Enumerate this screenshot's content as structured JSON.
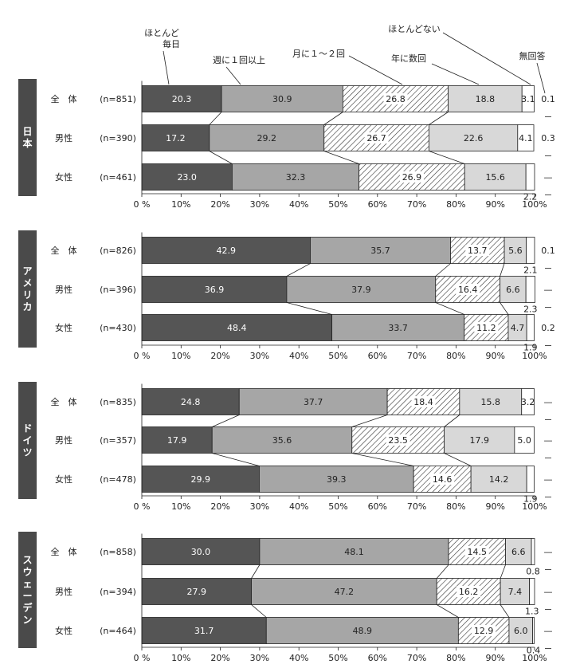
{
  "chart_data": {
    "type": "bar",
    "orientation": "horizontal",
    "stacked": true,
    "xlim": [
      0,
      100
    ],
    "xticks": [
      "0 %",
      "10%",
      "20%",
      "30%",
      "40%",
      "50%",
      "60%",
      "70%",
      "80%",
      "90%",
      "100%"
    ],
    "categories_legend": [
      "ほとんど\n毎日",
      "週に１回以上",
      "月に１～２回",
      "年に数回",
      "ほとんどない",
      "無回答"
    ],
    "colors": [
      "#555555",
      "#a6a6a6",
      "hatch",
      "#d8d8d8",
      "#ffffff",
      "#ffffff"
    ],
    "groups": [
      {
        "country": "日本",
        "rows": [
          {
            "label": "全　体",
            "n": "(n=851)",
            "values": [
              20.3,
              30.9,
              26.8,
              18.8,
              3.1,
              0.1
            ],
            "labels": [
              "20.3",
              "30.9",
              "26.8",
              "18.8",
              "3.1",
              "0.1"
            ]
          },
          {
            "label": "男性",
            "n": "(n=390)",
            "values": [
              17.2,
              29.2,
              26.7,
              22.6,
              4.1,
              0.3
            ],
            "labels": [
              "17.2",
              "29.2",
              "26.7",
              "22.6",
              "4.1",
              "0.3"
            ]
          },
          {
            "label": "女性",
            "n": "(n=461)",
            "values": [
              23.0,
              32.3,
              26.9,
              15.6,
              2.2,
              0.0
            ],
            "labels": [
              "23.0",
              "32.3",
              "26.9",
              "15.6",
              "2.2",
              "—"
            ]
          }
        ]
      },
      {
        "country": "アメリカ",
        "rows": [
          {
            "label": "全　体",
            "n": "(n=826)",
            "values": [
              42.9,
              35.7,
              13.7,
              5.6,
              2.1,
              0.1
            ],
            "labels": [
              "42.9",
              "35.7",
              "13.7",
              "5.6",
              "2.1",
              "0.1"
            ]
          },
          {
            "label": "男性",
            "n": "(n=396)",
            "values": [
              36.9,
              37.9,
              16.4,
              6.6,
              2.3,
              0.0
            ],
            "labels": [
              "36.9",
              "37.9",
              "16.4",
              "6.6",
              "2.3",
              "—"
            ]
          },
          {
            "label": "女性",
            "n": "(n=430)",
            "values": [
              48.4,
              33.7,
              11.2,
              4.7,
              1.9,
              0.2
            ],
            "labels": [
              "48.4",
              "33.7",
              "11.2",
              "4.7",
              "1.9",
              "0.2"
            ]
          }
        ]
      },
      {
        "country": "ドイツ",
        "rows": [
          {
            "label": "全　体",
            "n": "(n=835)",
            "values": [
              24.8,
              37.7,
              18.4,
              15.8,
              3.2,
              0.0
            ],
            "labels": [
              "24.8",
              "37.7",
              "18.4",
              "15.8",
              "3.2",
              "—"
            ]
          },
          {
            "label": "男性",
            "n": "(n=357)",
            "values": [
              17.9,
              35.6,
              23.5,
              17.9,
              5.0,
              0.0
            ],
            "labels": [
              "17.9",
              "35.6",
              "23.5",
              "17.9",
              "5.0",
              "—"
            ]
          },
          {
            "label": "女性",
            "n": "(n=478)",
            "values": [
              29.9,
              39.3,
              14.6,
              14.2,
              1.9,
              0.0
            ],
            "labels": [
              "29.9",
              "39.3",
              "14.6",
              "14.2",
              "1.9",
              "—"
            ]
          }
        ]
      },
      {
        "country": "スウェーデン",
        "rows": [
          {
            "label": "全　体",
            "n": "(n=858)",
            "values": [
              30.0,
              48.1,
              14.5,
              6.6,
              0.8,
              0.0
            ],
            "labels": [
              "30.0",
              "48.1",
              "14.5",
              "6.6",
              "0.8",
              "—"
            ]
          },
          {
            "label": "男性",
            "n": "(n=394)",
            "values": [
              27.9,
              47.2,
              16.2,
              7.4,
              1.3,
              0.0
            ],
            "labels": [
              "27.9",
              "47.2",
              "16.2",
              "7.4",
              "1.3",
              "—"
            ]
          },
          {
            "label": "女性",
            "n": "(n=464)",
            "values": [
              31.7,
              48.9,
              12.9,
              6.0,
              0.4,
              0.0
            ],
            "labels": [
              "31.7",
              "48.9",
              "12.9",
              "6.0",
              "0.4",
              "—"
            ]
          }
        ]
      }
    ]
  }
}
